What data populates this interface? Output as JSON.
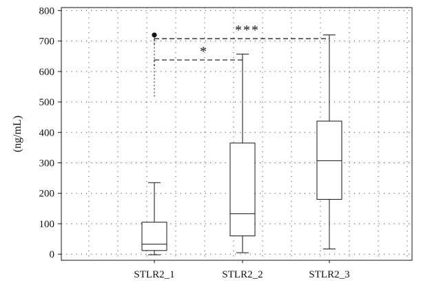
{
  "chart_data": {
    "type": "box",
    "title": "",
    "xlabel": "",
    "ylabel": "(ng/mL)",
    "ylim": [
      -20,
      810
    ],
    "yticks": [
      0,
      100,
      200,
      300,
      400,
      500,
      600,
      700,
      800
    ],
    "grid": "dotted",
    "categories": [
      "STLR2_1",
      "STLR2_2",
      "STLR2_3"
    ],
    "boxes": [
      {
        "category": "STLR2_1",
        "whisker_low": -2,
        "q1": 12,
        "median": 33,
        "q3": 105,
        "whisker_high": 235,
        "outliers": [
          720
        ]
      },
      {
        "category": "STLR2_2",
        "whisker_low": 5,
        "q1": 60,
        "median": 133,
        "q3": 365,
        "whisker_high": 657,
        "outliers": []
      },
      {
        "category": "STLR2_3",
        "whisker_low": 17,
        "q1": 180,
        "median": 307,
        "q3": 437,
        "whisker_high": 720,
        "outliers": []
      }
    ],
    "significance": [
      {
        "from": "STLR2_1",
        "to": "STLR2_2",
        "label": "*",
        "y": 638
      },
      {
        "from": "STLR2_1",
        "to": "STLR2_3",
        "label": "***",
        "y": 708
      }
    ]
  }
}
